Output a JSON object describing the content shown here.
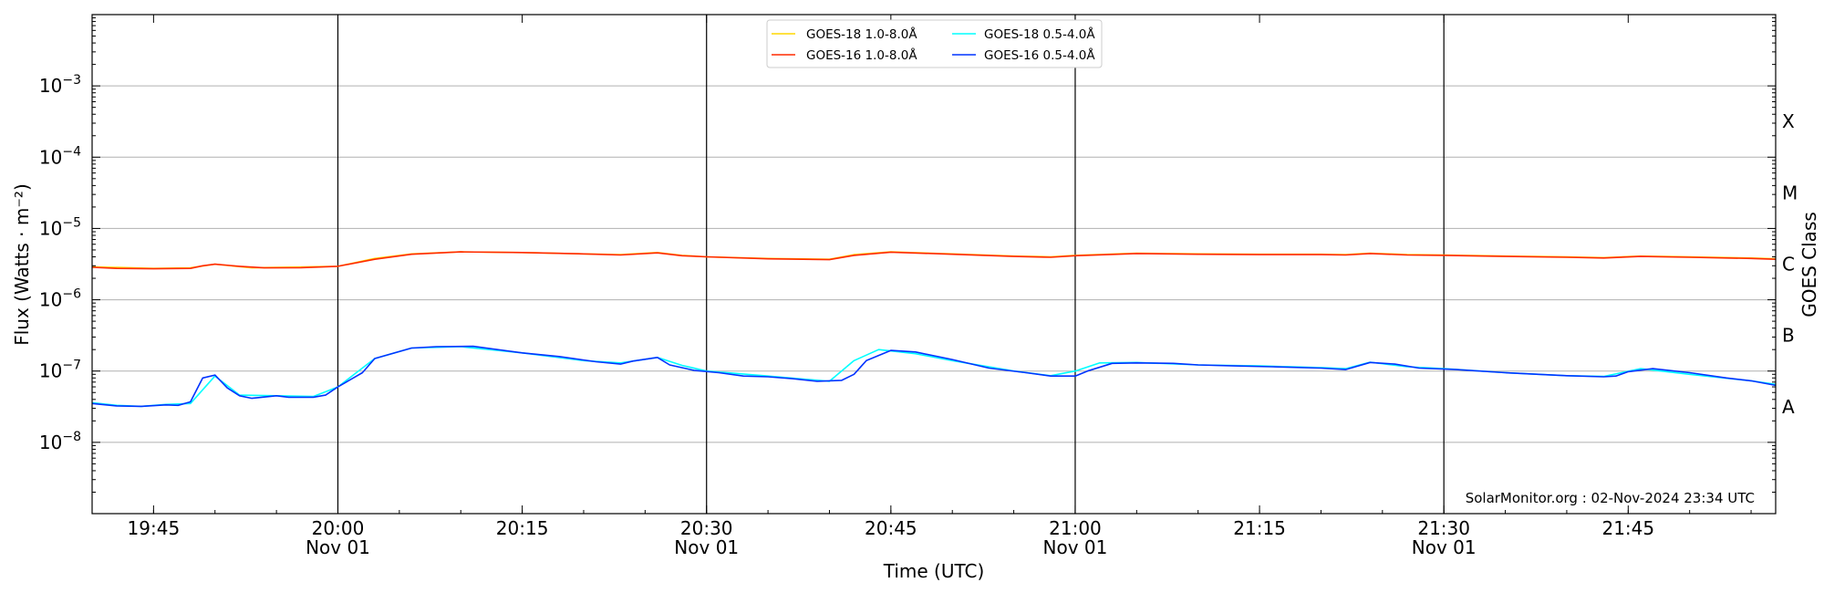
{
  "chart_data": {
    "type": "line",
    "title": "",
    "xlabel": "Time (UTC)",
    "ylabel": "Flux (Watts · m⁻²)",
    "y2label": "GOES Class",
    "yscale": "log",
    "ylim": [
      1e-09,
      0.01
    ],
    "xlim": [
      "19:40",
      "21:57"
    ],
    "grid": "horizontal at decades",
    "legend_position": "top-center",
    "credit": "SolarMonitor.org : 02-Nov-2024 23:34 UTC",
    "x_ticks": [
      {
        "t": "19:45",
        "label": "19:45",
        "sub": ""
      },
      {
        "t": "20:00",
        "label": "20:00",
        "sub": "Nov 01"
      },
      {
        "t": "20:15",
        "label": "20:15",
        "sub": ""
      },
      {
        "t": "20:30",
        "label": "20:30",
        "sub": "Nov 01"
      },
      {
        "t": "20:45",
        "label": "20:45",
        "sub": ""
      },
      {
        "t": "21:00",
        "label": "21:00",
        "sub": "Nov 01"
      },
      {
        "t": "21:15",
        "label": "21:15",
        "sub": ""
      },
      {
        "t": "21:30",
        "label": "21:30",
        "sub": "Nov 01"
      },
      {
        "t": "21:45",
        "label": "21:45",
        "sub": ""
      }
    ],
    "vertical_markers": [
      "20:00",
      "20:30",
      "21:00",
      "21:30"
    ],
    "y_ticks": [
      {
        "value": 1e-08,
        "exp": "−8"
      },
      {
        "value": 1e-07,
        "exp": "−7"
      },
      {
        "value": 1e-06,
        "exp": "−6"
      },
      {
        "value": 1e-05,
        "exp": "−5"
      },
      {
        "value": 0.0001,
        "exp": "−4"
      },
      {
        "value": 0.001,
        "exp": "−3"
      }
    ],
    "class_labels": [
      {
        "label": "X",
        "value": 0.000316
      },
      {
        "label": "M",
        "value": 3.16e-05
      },
      {
        "label": "C",
        "value": 3.16e-06
      },
      {
        "label": "B",
        "value": 3.16e-07
      },
      {
        "label": "A",
        "value": 3.16e-08
      }
    ],
    "legend": [
      {
        "label": "GOES-18 1.0-8.0Å",
        "color": "#ffd700"
      },
      {
        "label": "GOES-18 0.5-4.0Å",
        "color": "#00ffff"
      },
      {
        "label": "GOES-16 1.0-8.0Å",
        "color": "#ff2a00"
      },
      {
        "label": "GOES-16 0.5-4.0Å",
        "color": "#0033ff"
      }
    ],
    "series": [
      {
        "name": "GOES-18 1.0-8.0Å",
        "color": "#ffd700",
        "points": [
          [
            "19:40",
            2.9e-06
          ],
          [
            "19:45",
            2.75e-06
          ],
          [
            "19:48",
            2.8e-06
          ],
          [
            "19:50",
            3.15e-06
          ],
          [
            "19:53",
            2.8e-06
          ],
          [
            "20:00",
            2.95e-06
          ],
          [
            "20:03",
            3.8e-06
          ],
          [
            "20:06",
            4.4e-06
          ],
          [
            "20:10",
            4.7e-06
          ],
          [
            "20:15",
            4.6e-06
          ],
          [
            "20:20",
            4.4e-06
          ],
          [
            "20:23",
            4.3e-06
          ],
          [
            "20:26",
            4.6e-06
          ],
          [
            "20:28",
            4.2e-06
          ],
          [
            "20:30",
            4e-06
          ],
          [
            "20:35",
            3.8e-06
          ],
          [
            "20:40",
            3.7e-06
          ],
          [
            "20:42",
            4.3e-06
          ],
          [
            "20:45",
            4.7e-06
          ],
          [
            "20:50",
            4.4e-06
          ],
          [
            "20:55",
            4.1e-06
          ],
          [
            "20:58",
            4e-06
          ],
          [
            "21:00",
            4.2e-06
          ],
          [
            "21:05",
            4.5e-06
          ],
          [
            "21:10",
            4.4e-06
          ],
          [
            "21:15",
            4.35e-06
          ],
          [
            "21:20",
            4.35e-06
          ],
          [
            "21:22",
            4.3e-06
          ],
          [
            "21:24",
            4.5e-06
          ],
          [
            "21:27",
            4.3e-06
          ],
          [
            "21:30",
            4.25e-06
          ],
          [
            "21:35",
            4.1e-06
          ],
          [
            "21:40",
            4e-06
          ],
          [
            "21:43",
            3.9e-06
          ],
          [
            "21:46",
            4.1e-06
          ],
          [
            "21:50",
            4e-06
          ],
          [
            "21:55",
            3.85e-06
          ],
          [
            "21:57",
            3.75e-06
          ]
        ]
      },
      {
        "name": "GOES-18 0.5-4.0Å",
        "color": "#00ffff",
        "points": [
          [
            "19:40",
            3.6e-08
          ],
          [
            "19:42",
            3.3e-08
          ],
          [
            "19:44",
            3.2e-08
          ],
          [
            "19:46",
            3.4e-08
          ],
          [
            "19:48",
            3.5e-08
          ],
          [
            "19:50",
            8.5e-08
          ],
          [
            "19:52",
            4.6e-08
          ],
          [
            "19:55",
            4.5e-08
          ],
          [
            "19:58",
            4.4e-08
          ],
          [
            "20:00",
            6e-08
          ],
          [
            "20:03",
            1.5e-07
          ],
          [
            "20:06",
            2.1e-07
          ],
          [
            "20:10",
            2.2e-07
          ],
          [
            "20:15",
            1.8e-07
          ],
          [
            "20:20",
            1.4e-07
          ],
          [
            "20:23",
            1.3e-07
          ],
          [
            "20:26",
            1.55e-07
          ],
          [
            "20:28",
            1.2e-07
          ],
          [
            "20:30",
            1e-07
          ],
          [
            "20:35",
            8.5e-08
          ],
          [
            "20:40",
            7.2e-08
          ],
          [
            "20:42",
            1.4e-07
          ],
          [
            "20:44",
            2e-07
          ],
          [
            "20:47",
            1.75e-07
          ],
          [
            "20:50",
            1.4e-07
          ],
          [
            "20:55",
            1e-07
          ],
          [
            "20:58",
            8.6e-08
          ],
          [
            "21:00",
            1e-07
          ],
          [
            "21:02",
            1.3e-07
          ],
          [
            "21:05",
            1.32e-07
          ],
          [
            "21:10",
            1.22e-07
          ],
          [
            "21:15",
            1.18e-07
          ],
          [
            "21:20",
            1.12e-07
          ],
          [
            "21:22",
            1.08e-07
          ],
          [
            "21:24",
            1.33e-07
          ],
          [
            "21:27",
            1.15e-07
          ],
          [
            "21:30",
            1.08e-07
          ],
          [
            "21:35",
            9.5e-08
          ],
          [
            "21:40",
            8.6e-08
          ],
          [
            "21:43",
            8.4e-08
          ],
          [
            "21:46",
            1.08e-07
          ],
          [
            "21:50",
            9e-08
          ],
          [
            "21:55",
            7.3e-08
          ],
          [
            "21:57",
            6.5e-08
          ]
        ]
      },
      {
        "name": "GOES-16 1.0-8.0Å",
        "color": "#ff2a00",
        "points": [
          [
            "19:40",
            2.85e-06
          ],
          [
            "19:42",
            2.75e-06
          ],
          [
            "19:45",
            2.72e-06
          ],
          [
            "19:48",
            2.75e-06
          ],
          [
            "19:49",
            3e-06
          ],
          [
            "19:50",
            3.15e-06
          ],
          [
            "19:52",
            2.95e-06
          ],
          [
            "19:54",
            2.8e-06
          ],
          [
            "19:57",
            2.82e-06
          ],
          [
            "20:00",
            2.95e-06
          ],
          [
            "20:03",
            3.7e-06
          ],
          [
            "20:06",
            4.35e-06
          ],
          [
            "20:10",
            4.7e-06
          ],
          [
            "20:15",
            4.6e-06
          ],
          [
            "20:20",
            4.4e-06
          ],
          [
            "20:23",
            4.25e-06
          ],
          [
            "20:26",
            4.55e-06
          ],
          [
            "20:28",
            4.15e-06
          ],
          [
            "20:30",
            4e-06
          ],
          [
            "20:35",
            3.75e-06
          ],
          [
            "20:40",
            3.65e-06
          ],
          [
            "20:42",
            4.2e-06
          ],
          [
            "20:45",
            4.65e-06
          ],
          [
            "20:50",
            4.35e-06
          ],
          [
            "20:55",
            4.05e-06
          ],
          [
            "20:58",
            3.95e-06
          ],
          [
            "21:00",
            4.15e-06
          ],
          [
            "21:05",
            4.45e-06
          ],
          [
            "21:10",
            4.35e-06
          ],
          [
            "21:15",
            4.3e-06
          ],
          [
            "21:20",
            4.3e-06
          ],
          [
            "21:22",
            4.25e-06
          ],
          [
            "21:24",
            4.45e-06
          ],
          [
            "21:27",
            4.25e-06
          ],
          [
            "21:30",
            4.2e-06
          ],
          [
            "21:35",
            4.05e-06
          ],
          [
            "21:40",
            3.95e-06
          ],
          [
            "21:43",
            3.85e-06
          ],
          [
            "21:46",
            4.05e-06
          ],
          [
            "21:50",
            3.95e-06
          ],
          [
            "21:55",
            3.8e-06
          ],
          [
            "21:57",
            3.7e-06
          ]
        ]
      },
      {
        "name": "GOES-16 0.5-4.0Å",
        "color": "#0033ff",
        "points": [
          [
            "19:40",
            3.5e-08
          ],
          [
            "19:42",
            3.25e-08
          ],
          [
            "19:44",
            3.2e-08
          ],
          [
            "19:46",
            3.35e-08
          ],
          [
            "19:47",
            3.3e-08
          ],
          [
            "19:48",
            3.7e-08
          ],
          [
            "19:49",
            8e-08
          ],
          [
            "19:50",
            8.8e-08
          ],
          [
            "19:51",
            5.8e-08
          ],
          [
            "19:52",
            4.5e-08
          ],
          [
            "19:53",
            4.15e-08
          ],
          [
            "19:55",
            4.5e-08
          ],
          [
            "19:56",
            4.3e-08
          ],
          [
            "19:58",
            4.3e-08
          ],
          [
            "19:59",
            4.6e-08
          ],
          [
            "20:00",
            6e-08
          ],
          [
            "20:02",
            9.5e-08
          ],
          [
            "20:03",
            1.5e-07
          ],
          [
            "20:06",
            2.1e-07
          ],
          [
            "20:08",
            2.2e-07
          ],
          [
            "20:11",
            2.22e-07
          ],
          [
            "20:15",
            1.8e-07
          ],
          [
            "20:18",
            1.6e-07
          ],
          [
            "20:21",
            1.35e-07
          ],
          [
            "20:23",
            1.25e-07
          ],
          [
            "20:24",
            1.38e-07
          ],
          [
            "20:26",
            1.55e-07
          ],
          [
            "20:27",
            1.22e-07
          ],
          [
            "20:29",
            1.02e-07
          ],
          [
            "20:31",
            9.5e-08
          ],
          [
            "20:33",
            8.5e-08
          ],
          [
            "20:35",
            8.3e-08
          ],
          [
            "20:37",
            7.8e-08
          ],
          [
            "20:39",
            7.2e-08
          ],
          [
            "20:41",
            7.4e-08
          ],
          [
            "20:42",
            9e-08
          ],
          [
            "20:43",
            1.4e-07
          ],
          [
            "20:45",
            1.95e-07
          ],
          [
            "20:47",
            1.85e-07
          ],
          [
            "20:50",
            1.45e-07
          ],
          [
            "20:53",
            1.1e-07
          ],
          [
            "20:56",
            9.5e-08
          ],
          [
            "20:58",
            8.5e-08
          ],
          [
            "21:00",
            8.5e-08
          ],
          [
            "21:01",
            1e-07
          ],
          [
            "21:03",
            1.28e-07
          ],
          [
            "21:05",
            1.3e-07
          ],
          [
            "21:08",
            1.28e-07
          ],
          [
            "21:10",
            1.22e-07
          ],
          [
            "21:13",
            1.18e-07
          ],
          [
            "21:16",
            1.15e-07
          ],
          [
            "21:20",
            1.1e-07
          ],
          [
            "21:22",
            1.05e-07
          ],
          [
            "21:24",
            1.32e-07
          ],
          [
            "21:26",
            1.25e-07
          ],
          [
            "21:28",
            1.1e-07
          ],
          [
            "21:31",
            1.05e-07
          ],
          [
            "21:35",
            9.5e-08
          ],
          [
            "21:40",
            8.6e-08
          ],
          [
            "21:43",
            8.3e-08
          ],
          [
            "21:44",
            8.5e-08
          ],
          [
            "21:45",
            9.8e-08
          ],
          [
            "21:47",
            1.08e-07
          ],
          [
            "21:50",
            9.5e-08
          ],
          [
            "21:53",
            8e-08
          ],
          [
            "21:55",
            7.3e-08
          ],
          [
            "21:57",
            6.3e-08
          ]
        ]
      }
    ]
  }
}
